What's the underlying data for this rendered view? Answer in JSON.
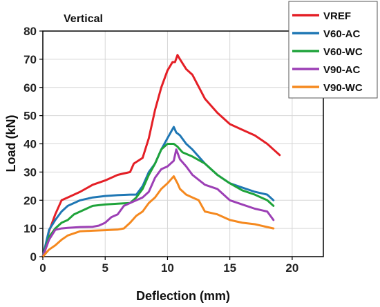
{
  "chart_data": {
    "type": "line",
    "title": "Vertical",
    "xlabel": "Deflection (mm)",
    "ylabel": "Load (kN)",
    "xlim": [
      0,
      22.5
    ],
    "ylim": [
      0,
      80
    ],
    "xticks": [
      0,
      5,
      10,
      15,
      20
    ],
    "yticks": [
      0,
      10,
      20,
      30,
      40,
      50,
      60,
      70,
      80
    ],
    "grid": true,
    "legend_position": "top-right",
    "series": [
      {
        "name": "VREF",
        "color": "#e41f26",
        "x": [
          0,
          0.5,
          1,
          1.5,
          2,
          3,
          4,
          5,
          6,
          7,
          7.3,
          8,
          8.5,
          9,
          9.5,
          10,
          10.4,
          10.6,
          10.8,
          11,
          11.5,
          12,
          13,
          14,
          15,
          16,
          17,
          18,
          18.5,
          19
        ],
        "y": [
          0,
          9,
          15,
          20,
          21,
          23,
          25.5,
          27,
          29,
          30,
          33,
          35,
          42,
          52,
          60,
          66,
          69,
          69,
          71.5,
          70,
          66.5,
          64.5,
          56,
          51,
          47,
          45,
          43,
          40,
          38,
          36
        ]
      },
      {
        "name": "V60-AC",
        "color": "#1f77b4",
        "x": [
          0,
          0.5,
          1,
          1.5,
          2,
          3,
          4,
          5,
          6,
          7,
          7.5,
          8,
          8.5,
          9,
          9.5,
          10,
          10.5,
          10.7,
          11,
          11.5,
          12,
          13,
          14,
          15,
          16,
          17,
          18,
          18.5
        ],
        "y": [
          0,
          9.5,
          13,
          16,
          18,
          20,
          21,
          21.5,
          21.8,
          22,
          22,
          25,
          30,
          33,
          38,
          42,
          46,
          44,
          43,
          40,
          38,
          33,
          29,
          26,
          24.5,
          23,
          22,
          20
        ]
      },
      {
        "name": "V60-WC",
        "color": "#1fa33a",
        "x": [
          0,
          0.5,
          1,
          1.5,
          2,
          2.5,
          3,
          4,
          5,
          6,
          7,
          7.5,
          8,
          8.5,
          9,
          9.5,
          10,
          10.5,
          10.8,
          11.2,
          12,
          13,
          14,
          15,
          16,
          17,
          18,
          18.5
        ],
        "y": [
          0,
          7,
          10,
          12,
          13,
          15,
          16,
          18,
          18.5,
          18.8,
          19,
          21,
          24,
          29,
          33,
          38,
          40,
          40,
          39,
          37,
          35.5,
          33,
          29,
          26,
          23.5,
          22,
          20,
          18
        ]
      },
      {
        "name": "V90-AC",
        "color": "#9c3fb5",
        "x": [
          0,
          0.5,
          1,
          1.5,
          2,
          3,
          4,
          4.5,
          5,
          5.5,
          6,
          6.5,
          7,
          7.5,
          8,
          8.5,
          9,
          9.5,
          10,
          10.5,
          10.7,
          11,
          11.5,
          12,
          13,
          14,
          15,
          16,
          17,
          18,
          18.5
        ],
        "y": [
          0,
          6,
          9.5,
          10,
          10.2,
          10.5,
          10.6,
          11,
          12,
          14,
          15,
          18,
          19,
          20,
          21,
          23,
          28,
          31,
          32,
          34,
          38,
          34.5,
          32,
          29,
          25.5,
          24,
          20,
          18.5,
          17,
          16,
          13
        ]
      },
      {
        "name": "V90-WC",
        "color": "#f5891f",
        "x": [
          0,
          0.5,
          1,
          1.5,
          2,
          3,
          4,
          5,
          6,
          6.5,
          7,
          7.5,
          8,
          8.5,
          9,
          9.5,
          10,
          10.5,
          10.8,
          11,
          11.5,
          12,
          12.5,
          13,
          14,
          15,
          16,
          17,
          18,
          18.5
        ],
        "y": [
          0,
          2.5,
          4,
          6,
          7.5,
          9,
          9.2,
          9.4,
          9.6,
          10,
          12,
          14.5,
          16,
          19,
          21,
          24,
          26,
          28.5,
          26,
          24,
          22,
          21,
          20,
          16,
          15,
          13,
          12,
          11.5,
          10.5,
          10
        ]
      }
    ]
  }
}
